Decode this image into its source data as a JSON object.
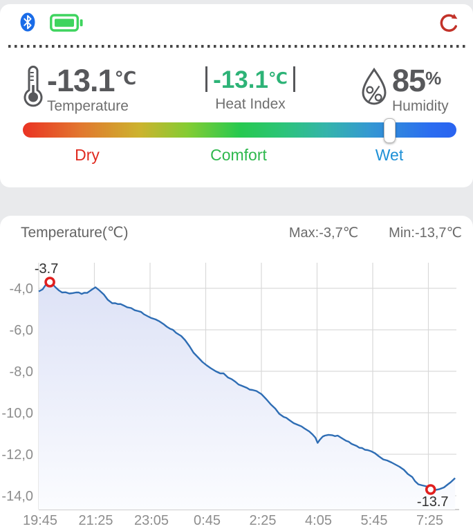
{
  "status_bar": {
    "bluetooth_icon": "bluetooth",
    "battery_icon": "battery-full",
    "refresh_icon": "refresh"
  },
  "readings": {
    "temperature": {
      "value": "-13.1",
      "unit": "℃",
      "label": "Temperature"
    },
    "heat_index": {
      "value": "-13.1",
      "unit": "℃",
      "label": "Heat Index"
    },
    "humidity": {
      "value": "85",
      "unit": "%",
      "label": "Humidity"
    }
  },
  "comfort_slider": {
    "labels": {
      "dry": "Dry",
      "comfort": "Comfort",
      "wet": "Wet"
    },
    "thumb_percent": 84.5
  },
  "colors": {
    "accent_green": "#2db377",
    "dry_red": "#e02b20",
    "comfort_green": "#2eb84d",
    "wet_blue": "#1e90d6",
    "bluetooth_blue": "#1a6ce8",
    "battery_green": "#3ed45e",
    "refresh_red": "#c23229",
    "chart_line": "#2e6db4",
    "chart_fill_top": "#dde2f6",
    "chart_fill_bottom": "#fbfcff",
    "marker_red": "#e01f1f",
    "grid": "#d9d9d9",
    "axis": "#bdbdbd",
    "axis_text": "#8d8d8d",
    "annotation_text": "#2f2f2f"
  },
  "chart_data": {
    "type": "area",
    "title": "Temperature(℃)",
    "max_label": "Max:-3,7℃",
    "min_label": "Min:-13,7℃",
    "grid": true,
    "legend": "none",
    "x_ticks": [
      "19:45",
      "21:25",
      "23:05",
      "0:45",
      "2:25",
      "4:05",
      "5:45",
      "7:25"
    ],
    "x_tick_interval_min": 100,
    "x_range_min": [
      0,
      748
    ],
    "y_ticks": [
      "-4,0",
      "-6,0",
      "-8,0",
      "-10,0",
      "-12,0",
      "-14,0"
    ],
    "y_tick_values": [
      -4,
      -6,
      -8,
      -10,
      -12,
      -14
    ],
    "ylim": [
      -14.9,
      -2.8
    ],
    "series": [
      {
        "name": "Temperature",
        "points": [
          [
            0,
            -4.15
          ],
          [
            7,
            -4.05
          ],
          [
            12,
            -3.85
          ],
          [
            20,
            -3.7
          ],
          [
            30,
            -3.95
          ],
          [
            42,
            -4.2
          ],
          [
            55,
            -4.25
          ],
          [
            67,
            -4.2
          ],
          [
            77,
            -4.27
          ],
          [
            87,
            -4.22
          ],
          [
            96,
            -4.05
          ],
          [
            102,
            -3.95
          ],
          [
            109,
            -4.1
          ],
          [
            117,
            -4.3
          ],
          [
            124,
            -4.55
          ],
          [
            132,
            -4.72
          ],
          [
            142,
            -4.76
          ],
          [
            152,
            -4.82
          ],
          [
            166,
            -4.95
          ],
          [
            179,
            -5.1
          ],
          [
            189,
            -5.25
          ],
          [
            196,
            -5.35
          ],
          [
            202,
            -5.43
          ],
          [
            210,
            -5.5
          ],
          [
            216,
            -5.58
          ],
          [
            224,
            -5.72
          ],
          [
            230,
            -5.85
          ],
          [
            236,
            -5.95
          ],
          [
            241,
            -6.0
          ],
          [
            247,
            -6.15
          ],
          [
            256,
            -6.3
          ],
          [
            263,
            -6.5
          ],
          [
            271,
            -6.8
          ],
          [
            278,
            -7.1
          ],
          [
            287,
            -7.35
          ],
          [
            294,
            -7.55
          ],
          [
            301,
            -7.7
          ],
          [
            309,
            -7.85
          ],
          [
            318,
            -8.0
          ],
          [
            326,
            -8.1
          ],
          [
            332,
            -8.1
          ],
          [
            340,
            -8.3
          ],
          [
            353,
            -8.5
          ],
          [
            365,
            -8.7
          ],
          [
            374,
            -8.8
          ],
          [
            384,
            -8.9
          ],
          [
            391,
            -8.95
          ],
          [
            400,
            -9.1
          ],
          [
            409,
            -9.35
          ],
          [
            417,
            -9.6
          ],
          [
            425,
            -9.8
          ],
          [
            432,
            -10.05
          ],
          [
            440,
            -10.2
          ],
          [
            450,
            -10.35
          ],
          [
            458,
            -10.5
          ],
          [
            467,
            -10.6
          ],
          [
            477,
            -10.75
          ],
          [
            486,
            -10.9
          ],
          [
            492,
            -11.05
          ],
          [
            497,
            -11.2
          ],
          [
            501,
            -11.45
          ],
          [
            505,
            -11.3
          ],
          [
            510,
            -11.15
          ],
          [
            514,
            -11.1
          ],
          [
            527,
            -11.08
          ],
          [
            537,
            -11.1
          ],
          [
            543,
            -11.2
          ],
          [
            552,
            -11.35
          ],
          [
            562,
            -11.5
          ],
          [
            571,
            -11.6
          ],
          [
            581,
            -11.7
          ],
          [
            591,
            -11.8
          ],
          [
            604,
            -11.95
          ],
          [
            611,
            -12.1
          ],
          [
            619,
            -12.25
          ],
          [
            626,
            -12.3
          ],
          [
            634,
            -12.4
          ],
          [
            641,
            -12.5
          ],
          [
            648,
            -12.6
          ],
          [
            656,
            -12.75
          ],
          [
            663,
            -12.95
          ],
          [
            671,
            -13.1
          ],
          [
            676,
            -13.3
          ],
          [
            682,
            -13.45
          ],
          [
            689,
            -13.5
          ],
          [
            697,
            -13.55
          ],
          [
            704,
            -13.7
          ],
          [
            713,
            -13.72
          ],
          [
            720,
            -13.68
          ],
          [
            728,
            -13.6
          ],
          [
            735,
            -13.45
          ],
          [
            740,
            -13.35
          ],
          [
            748,
            -13.15
          ]
        ]
      }
    ],
    "annotations": [
      {
        "minute": 20,
        "value": -3.7,
        "label": "-3.7",
        "placement": "above"
      },
      {
        "minute": 704,
        "value": -13.7,
        "label": "-13.7",
        "placement": "below"
      }
    ]
  }
}
